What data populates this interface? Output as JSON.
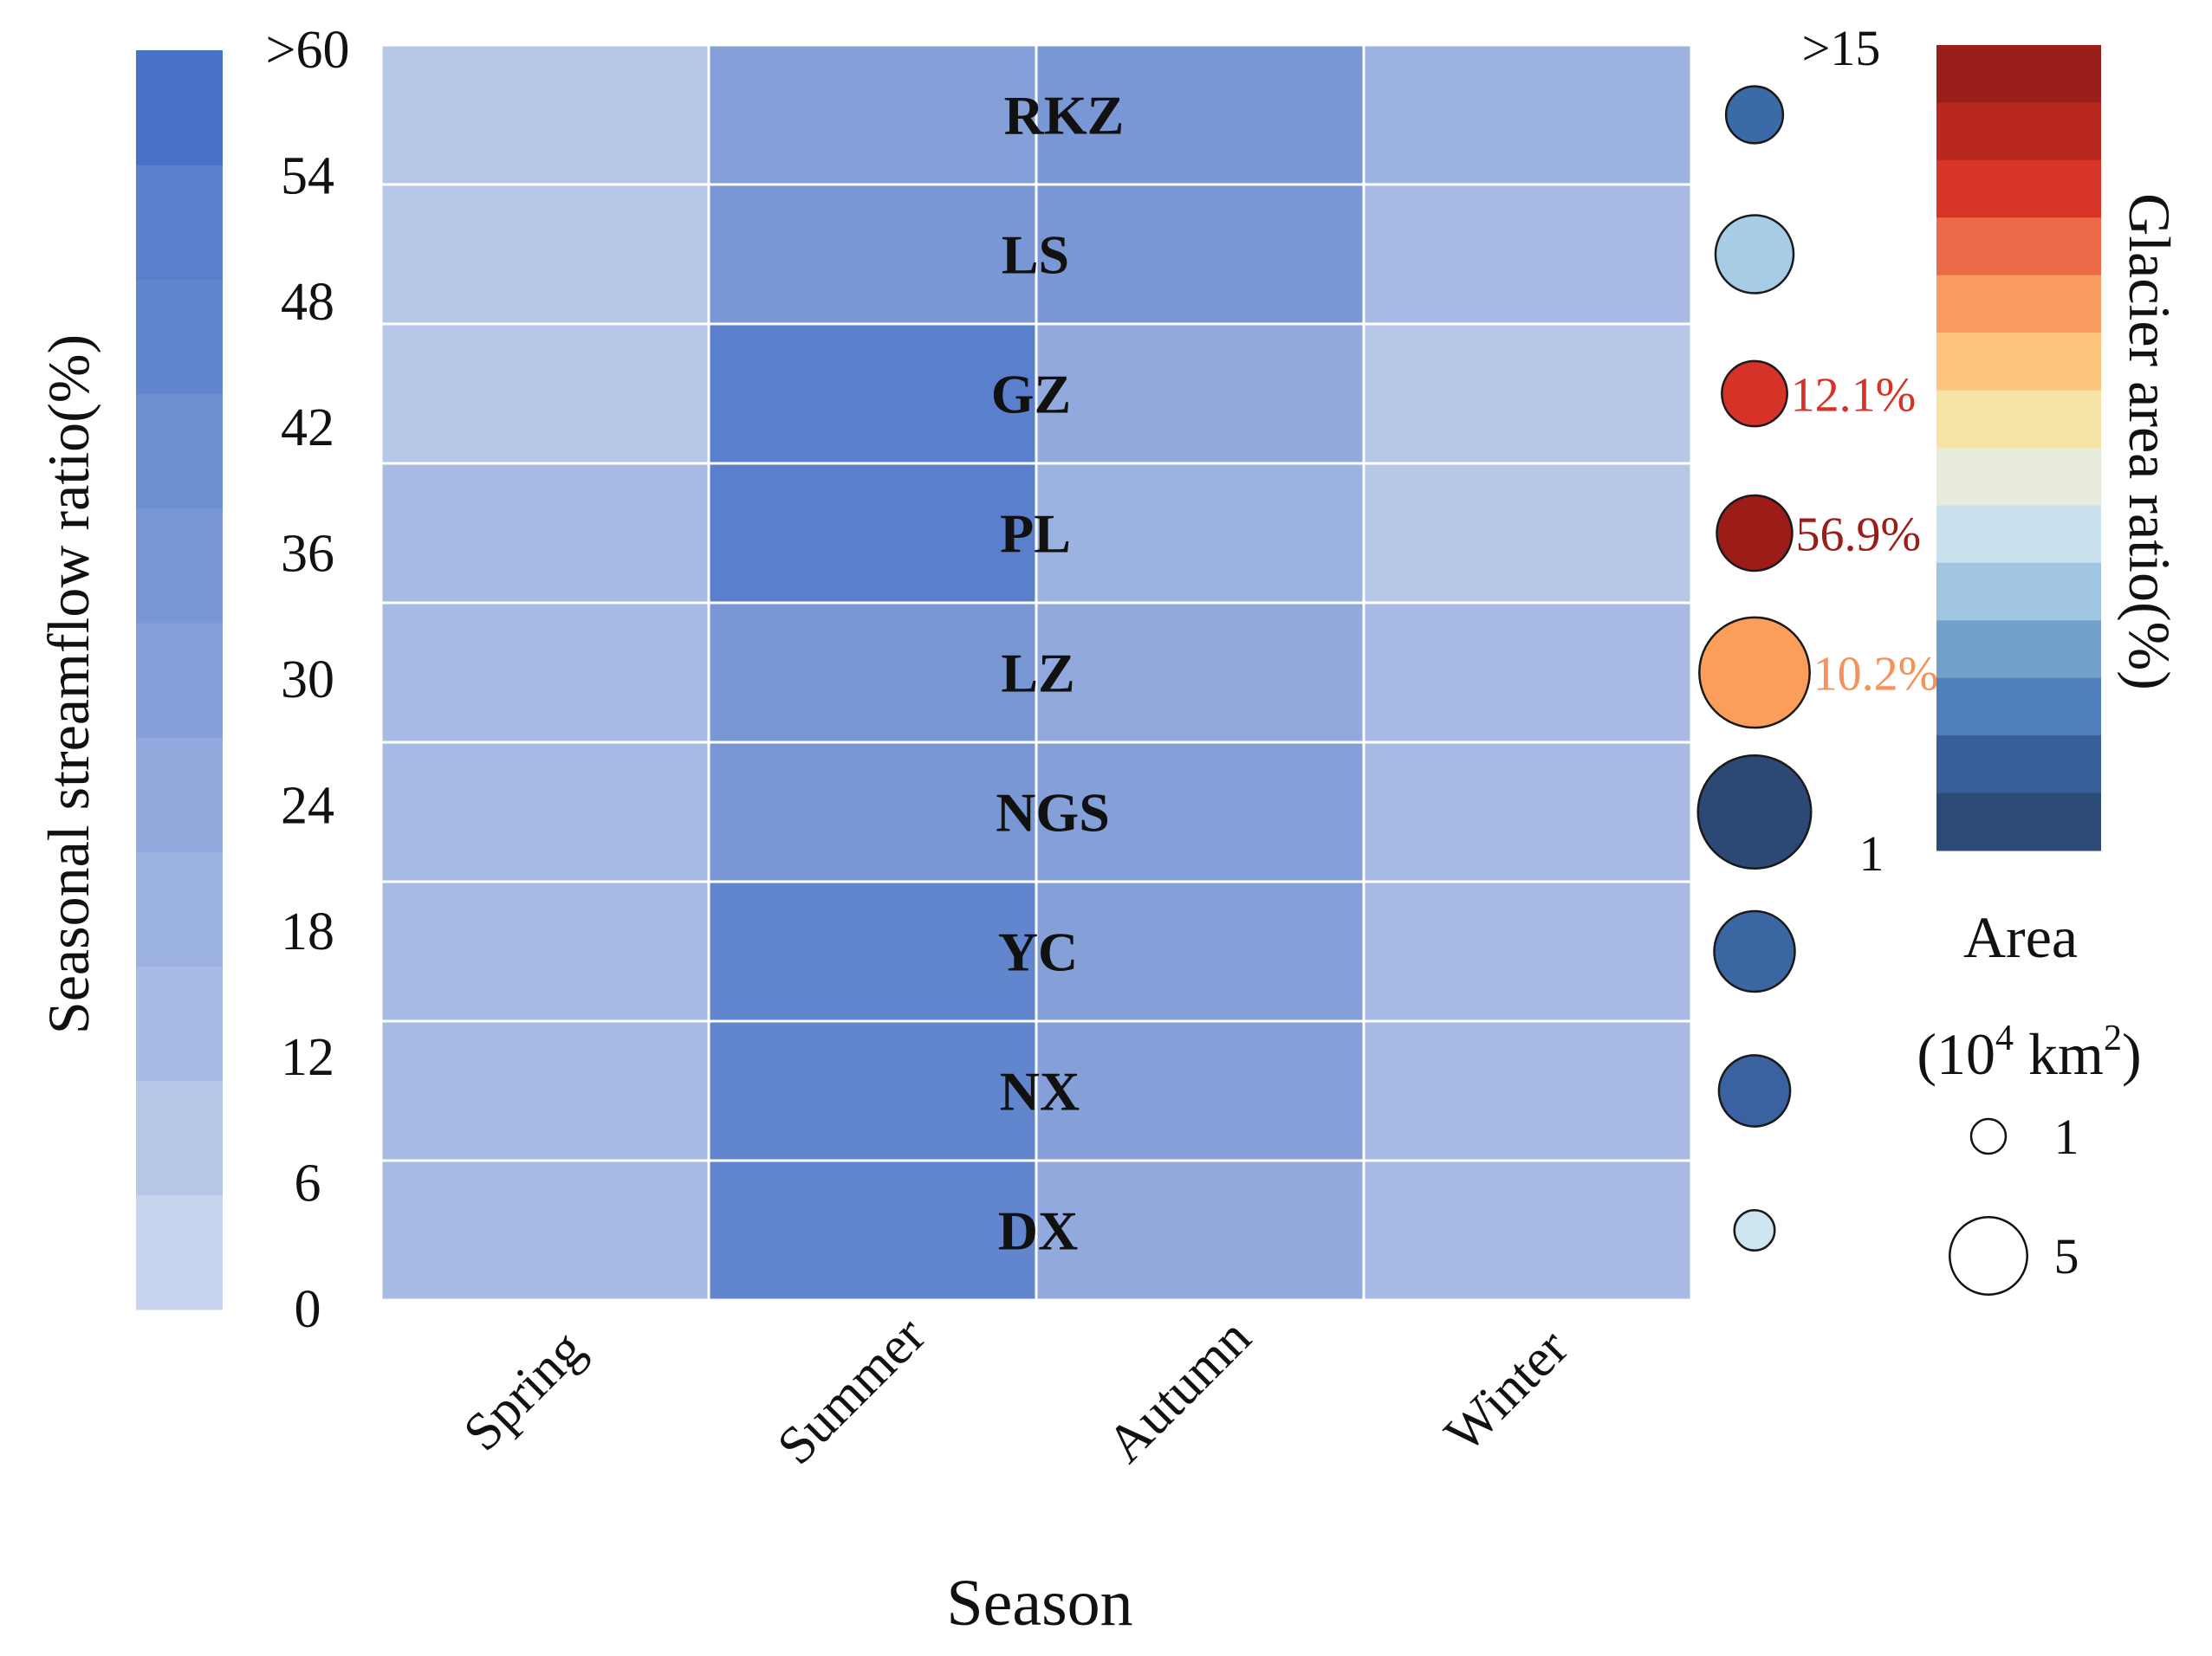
{
  "chart_data": {
    "type": "heatmap",
    "xlabel": "Season",
    "categories": [
      "Spring",
      "Summer",
      "Autumn",
      "Winter"
    ],
    "rows": [
      "RKZ",
      "LS",
      "GZ",
      "PL",
      "LZ",
      "NGS",
      "YC",
      "NX",
      "DX"
    ],
    "values": [
      [
        10,
        30,
        36,
        20
      ],
      [
        11,
        40,
        37,
        12
      ],
      [
        8,
        56,
        27,
        8
      ],
      [
        12,
        56,
        22,
        9
      ],
      [
        14,
        41,
        29,
        12
      ],
      [
        12,
        40,
        30,
        12
      ],
      [
        12,
        48,
        31,
        12
      ],
      [
        12,
        48,
        31,
        12
      ],
      [
        12,
        48,
        28,
        12
      ]
    ],
    "colorbar": {
      "label": "Seasonal streamflow ratio(%)",
      "ticks": [
        "0",
        "6",
        "12",
        "18",
        "24",
        "30",
        "36",
        "42",
        "48",
        "54",
        ">60"
      ],
      "range": [
        0,
        60
      ],
      "colors": [
        "#c8d4ee",
        "#b7c7e8",
        "#a7bbe4",
        "#9cb2e0",
        "#91a9dd",
        "#85a0d9",
        "#7a97d5",
        "#6e8fd2",
        "#6286cd",
        "#5a7fcc",
        "#4772c8"
      ]
    },
    "glacier_area_ratio": {
      "label": "Glacier area ratio(%)",
      "max_label": ">15",
      "min_label": "1",
      "colors_top_to_bottom": [
        "#9a1f1a",
        "#b8281f",
        "#d73527",
        "#ec6a47",
        "#f99c5f",
        "#fdc47d",
        "#f5e2a5",
        "#e6ebdc",
        "#c9e1ee",
        "#9fc5e0",
        "#73a1cc",
        "#4d7fbc",
        "#385f99",
        "#2b4a78"
      ],
      "points": [
        {
          "station": "RKZ",
          "color": "#3a6aa8",
          "area": 1.6
        },
        {
          "station": "LS",
          "color": "#a6cde5",
          "area": 3.0
        },
        {
          "station": "GZ",
          "color": "#d73227",
          "area": 2.1,
          "label": "12.1%",
          "label_color": "#d73227"
        },
        {
          "station": "PL",
          "color": "#9c1c18",
          "area": 2.8,
          "label": "56.9%",
          "label_color": "#9c1c18"
        },
        {
          "station": "LZ",
          "color": "#fb9e5a",
          "area": 6.0,
          "label": "10.2%",
          "label_color": "#f5915a"
        },
        {
          "station": "NGS",
          "color": "#2c4875",
          "area": 6.3
        },
        {
          "station": "YC",
          "color": "#3a66a1",
          "area": 3.2
        },
        {
          "station": "NX",
          "color": "#3a61a0",
          "area": 2.5
        },
        {
          "station": "DX",
          "color": "#cce5f1",
          "area": 0.8
        }
      ]
    },
    "size_legend": {
      "title": "Area",
      "unit_base": "(10",
      "unit_exp1": "4",
      "unit_mid": " km",
      "unit_exp2": "2",
      "unit_end": ")",
      "entries": [
        {
          "label": "1",
          "area": 1
        },
        {
          "label": "5",
          "area": 5
        }
      ]
    }
  }
}
